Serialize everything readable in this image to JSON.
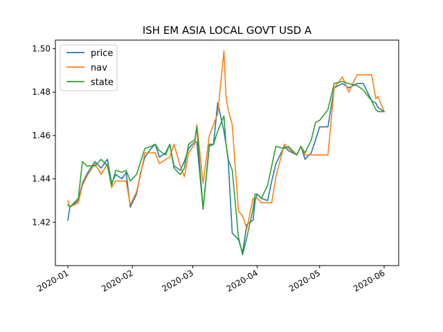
{
  "chart_data": {
    "type": "line",
    "title": "ISH EM ASIA LOCAL GOVT USD A",
    "xlabel": "",
    "ylabel": "",
    "x_ticks": [
      "2020-01",
      "2020-02",
      "2020-03",
      "2020-04",
      "2020-05",
      "2020-06"
    ],
    "y_ticks": [
      "1.42",
      "1.44",
      "1.46",
      "1.48",
      "1.50"
    ],
    "xlim": [
      "2019-12-26",
      "2020-06-08"
    ],
    "ylim": [
      1.4,
      1.504
    ],
    "grid": false,
    "legend_position": "top-left",
    "x": [
      "2020-01-01",
      "2020-01-02",
      "2020-01-06",
      "2020-01-08",
      "2020-01-10",
      "2020-01-14",
      "2020-01-17",
      "2020-01-20",
      "2020-01-22",
      "2020-01-24",
      "2020-01-27",
      "2020-01-29",
      "2020-01-31",
      "2020-02-03",
      "2020-02-05",
      "2020-02-07",
      "2020-02-10",
      "2020-02-12",
      "2020-02-14",
      "2020-02-17",
      "2020-02-19",
      "2020-02-21",
      "2020-02-24",
      "2020-02-26",
      "2020-02-28",
      "2020-03-02",
      "2020-03-03",
      "2020-03-06",
      "2020-03-09",
      "2020-03-11",
      "2020-03-13",
      "2020-03-16",
      "2020-03-17",
      "2020-03-18",
      "2020-03-20",
      "2020-03-23",
      "2020-03-25",
      "2020-03-27",
      "2020-03-30",
      "2020-03-31",
      "2020-04-01",
      "2020-04-03",
      "2020-04-06",
      "2020-04-08",
      "2020-04-10",
      "2020-04-14",
      "2020-04-16",
      "2020-04-20",
      "2020-04-22",
      "2020-04-24",
      "2020-04-27",
      "2020-04-29",
      "2020-05-01",
      "2020-05-05",
      "2020-05-08",
      "2020-05-12",
      "2020-05-15",
      "2020-05-19",
      "2020-05-22",
      "2020-05-26",
      "2020-05-28",
      "2020-05-29",
      "2020-06-01"
    ],
    "series": [
      {
        "name": "price",
        "color": "#1f77b4",
        "values": [
          1.421,
          1.427,
          1.43,
          1.438,
          1.442,
          1.448,
          1.445,
          1.449,
          1.438,
          1.442,
          1.44,
          1.443,
          1.427,
          1.433,
          1.443,
          1.45,
          1.454,
          1.456,
          1.45,
          1.452,
          1.456,
          1.446,
          1.444,
          1.448,
          1.454,
          1.457,
          1.457,
          1.426,
          1.456,
          1.456,
          1.475,
          1.462,
          1.456,
          1.45,
          1.415,
          1.412,
          1.406,
          1.419,
          1.421,
          1.43,
          1.433,
          1.431,
          1.43,
          1.439,
          1.447,
          1.455,
          1.453,
          1.451,
          1.455,
          1.449,
          1.452,
          1.458,
          1.464,
          1.464,
          1.482,
          1.484,
          1.482,
          1.484,
          1.484,
          1.476,
          1.475,
          1.473,
          1.471
        ]
      },
      {
        "name": "nav",
        "color": "#ff7f0e",
        "values": [
          1.43,
          1.427,
          1.429,
          1.437,
          1.441,
          1.447,
          1.442,
          1.447,
          1.436,
          1.439,
          1.439,
          1.439,
          1.428,
          1.434,
          1.442,
          1.452,
          1.452,
          1.452,
          1.447,
          1.449,
          1.45,
          1.456,
          1.446,
          1.441,
          1.452,
          1.456,
          1.465,
          1.438,
          1.46,
          1.465,
          1.47,
          1.499,
          1.478,
          1.472,
          1.465,
          1.425,
          1.423,
          1.417,
          1.431,
          1.431,
          1.431,
          1.429,
          1.429,
          1.429,
          1.441,
          1.456,
          1.454,
          1.451,
          1.455,
          1.451,
          1.451,
          1.451,
          1.451,
          1.451,
          1.482,
          1.487,
          1.48,
          1.488,
          1.488,
          1.488,
          1.477,
          1.478,
          1.471
        ]
      },
      {
        "name": "state",
        "color": "#2ca02c",
        "values": [
          1.428,
          1.427,
          1.431,
          1.448,
          1.446,
          1.446,
          1.449,
          1.446,
          1.437,
          1.444,
          1.443,
          1.444,
          1.439,
          1.442,
          1.448,
          1.454,
          1.455,
          1.456,
          1.453,
          1.451,
          1.456,
          1.445,
          1.442,
          1.445,
          1.456,
          1.458,
          1.464,
          1.426,
          1.455,
          1.456,
          1.462,
          1.469,
          1.456,
          1.449,
          1.444,
          1.413,
          1.405,
          1.413,
          1.426,
          1.433,
          1.433,
          1.431,
          1.437,
          1.446,
          1.455,
          1.454,
          1.455,
          1.451,
          1.455,
          1.452,
          1.458,
          1.466,
          1.467,
          1.472,
          1.484,
          1.485,
          1.484,
          1.483,
          1.481,
          1.476,
          1.472,
          1.471,
          1.471
        ]
      }
    ]
  }
}
